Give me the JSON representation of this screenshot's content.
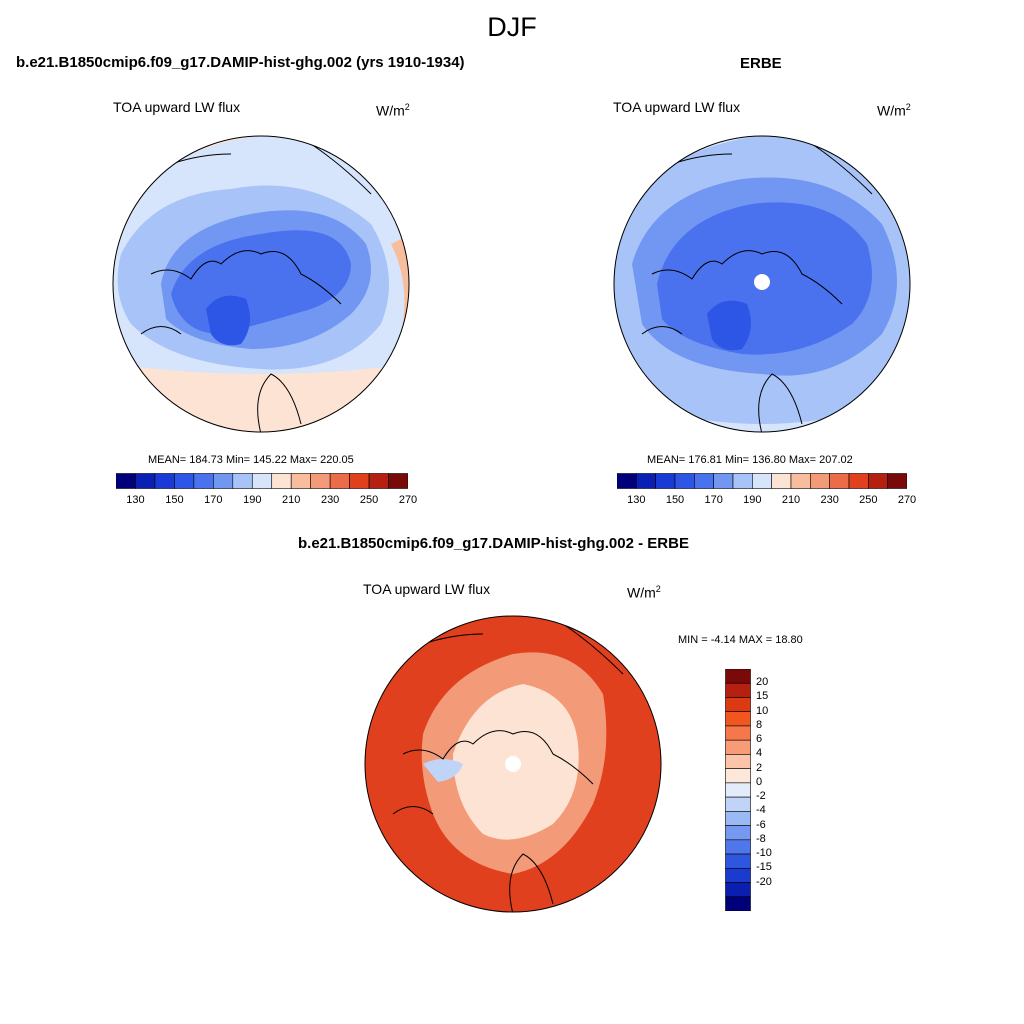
{
  "figure": {
    "title": "DJF",
    "panels": [
      {
        "id": "model",
        "title": "b.e21.B1850cmip6.f09_g17.DAMIP-hist-ghg.002 (yrs 1910-1934)",
        "variable": "TOA upward LW flux",
        "units_base": "W/m",
        "units_exp": "2",
        "stats": "MEAN= 184.73  Min= 145.22  Max= 220.05"
      },
      {
        "id": "obs",
        "title": "ERBE",
        "variable": "TOA upward LW flux",
        "units_base": "W/m",
        "units_exp": "2",
        "stats": "MEAN= 176.81  Min= 136.80  Max= 207.02"
      },
      {
        "id": "diff",
        "title": "b.e21.B1850cmip6.f09_g17.DAMIP-hist-ghg.002 - ERBE",
        "variable": "TOA upward LW flux",
        "units_base": "W/m",
        "units_exp": "2",
        "stats": "MIN =  -4.14 MAX =  18.80"
      }
    ],
    "colorbar_abs": {
      "colors": [
        "#00007a",
        "#0a1fb3",
        "#1a3ad6",
        "#2d55e6",
        "#4a72ee",
        "#7197f3",
        "#a8c3f8",
        "#d6e5fb",
        "#fde3d3",
        "#f8bd9d",
        "#f39a78",
        "#ec6b48",
        "#e0401d",
        "#b52010",
        "#7a0a0a"
      ],
      "ticks": [
        "130",
        "150",
        "170",
        "190",
        "210",
        "230",
        "250",
        "270"
      ]
    },
    "colorbar_diff": {
      "colors": [
        "#7a0a0a",
        "#b52010",
        "#dc3a12",
        "#f0561e",
        "#f5774a",
        "#f89c78",
        "#fcc4a8",
        "#fde7d8",
        "#e3ecfb",
        "#c0d4f8",
        "#9bb9f5",
        "#7599f0",
        "#4f76ea",
        "#2f56df",
        "#1a3ad0",
        "#0a1fb0",
        "#00007a"
      ],
      "ticks": [
        "20",
        "15",
        "10",
        "8",
        "6",
        "4",
        "2",
        "0",
        "-2",
        "-4",
        "-6",
        "-8",
        "-10",
        "-15",
        "-20"
      ]
    },
    "map_colors": {
      "sea_light": "#d6e5fb",
      "sea_mid": "#a8c3f8",
      "ice_blue": "#7197f3",
      "deep_blue": "#4a72ee",
      "core_blue": "#2d55e6",
      "warm_pale": "#fde3d3",
      "warm_light": "#f8bd9d",
      "diff_bg": "#e0401d",
      "diff_mid": "#f39a78",
      "diff_pale": "#fde3d3",
      "diff_blue": "#c0d4f8"
    }
  }
}
